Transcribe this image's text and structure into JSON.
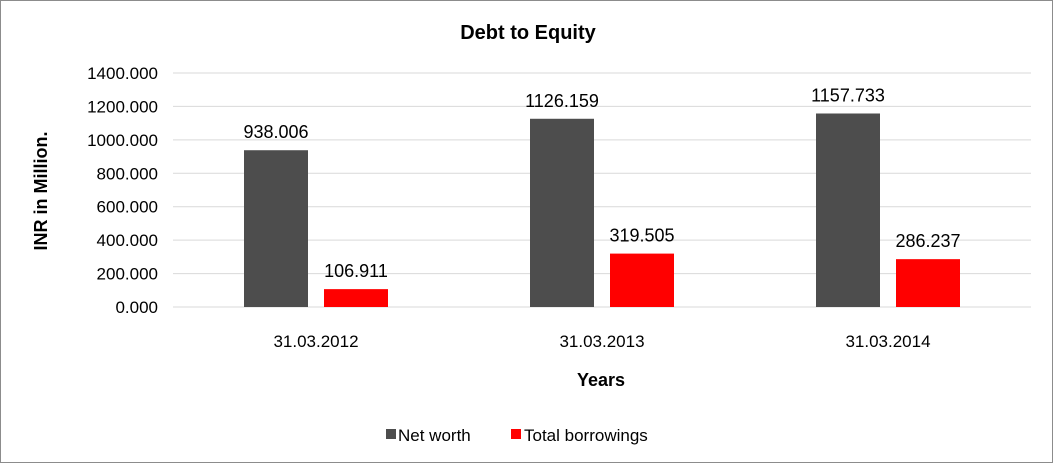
{
  "chart_data": {
    "type": "bar",
    "title": "Debt to Equity",
    "xlabel": "Years",
    "ylabel": "INR in Million.",
    "categories": [
      "31.03.2012",
      "31.03.2013",
      "31.03.2014"
    ],
    "series": [
      {
        "name": "Net worth",
        "color": "#4d4d4d",
        "values": [
          938.006,
          1126.159,
          1157.733
        ],
        "labels": [
          "938.006",
          "1126.159",
          "1157.733"
        ]
      },
      {
        "name": "Total borrowings",
        "color": "#ff0000",
        "values": [
          106.911,
          319.505,
          286.237
        ],
        "labels": [
          "106.911",
          "319.505",
          "286.237"
        ]
      }
    ],
    "ylim": [
      0,
      1400
    ],
    "yticks": [
      "0.000",
      "200.000",
      "400.000",
      "600.000",
      "800.000",
      "1000.000",
      "1200.000",
      "1400.000"
    ],
    "grid": true,
    "legend": "bottom"
  }
}
